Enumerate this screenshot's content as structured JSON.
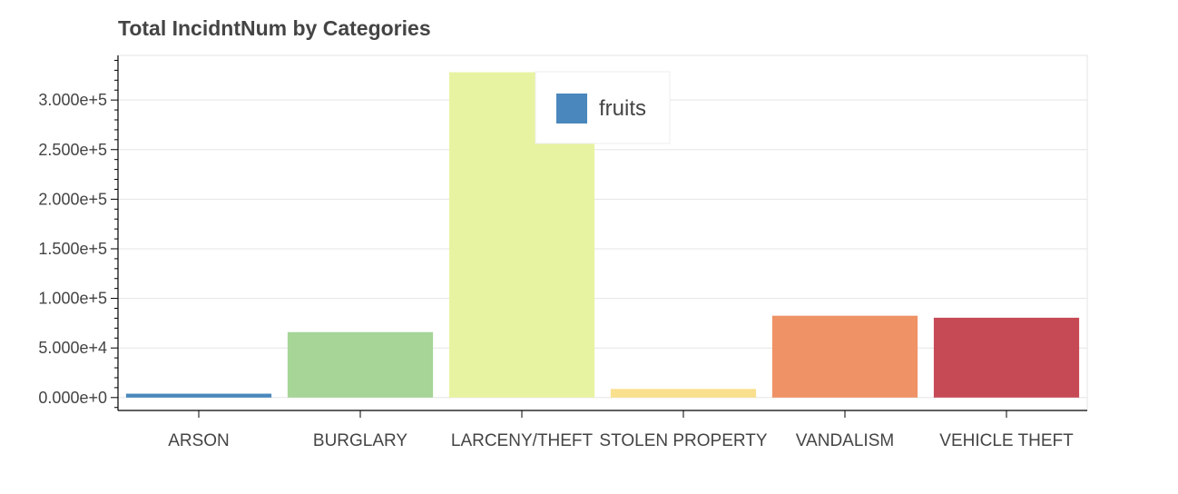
{
  "chart_data": {
    "type": "bar",
    "title": "Total IncidntNum by Categories",
    "categories": [
      "ARSON",
      "BURGLARY",
      "LARCENY/THEFT",
      "STOLEN PROPERTY",
      "VANDALISM",
      "VEHICLE THEFT"
    ],
    "values": [
      3900,
      66000,
      328000,
      8700,
      82500,
      80500
    ],
    "colors": [
      "#4a87bd",
      "#a6d597",
      "#e8f3a1",
      "#f9e08e",
      "#ef9265",
      "#c64a55"
    ],
    "ylim": [
      -13000,
      345000
    ],
    "ytick_values": [
      0,
      50000,
      100000,
      150000,
      200000,
      250000,
      300000
    ],
    "ytick_labels": [
      "0.000e+0",
      "5.000e+4",
      "1.000e+5",
      "1.500e+5",
      "2.000e+5",
      "2.500e+5",
      "3.000e+5"
    ],
    "grid": true,
    "legend": {
      "placement": "top-center",
      "entries": [
        {
          "label": "fruits",
          "color": "#4a87bd"
        }
      ]
    }
  }
}
